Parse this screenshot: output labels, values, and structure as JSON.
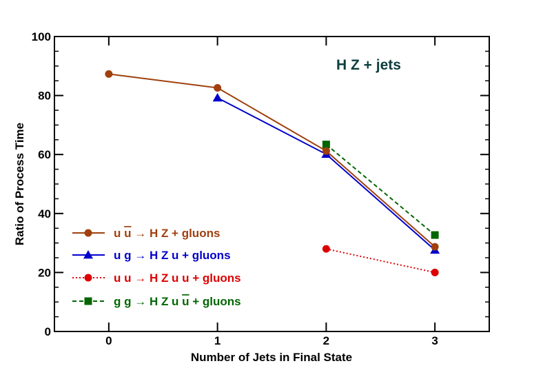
{
  "chart_data": {
    "type": "line",
    "xlabel": "Number of Jets in Final State",
    "ylabel": "Ratio of Process Time",
    "annotation": "H Z + jets",
    "annotation_color": "#0d3d3d",
    "xlim": [
      -0.5,
      3.5
    ],
    "ylim": [
      0,
      100
    ],
    "x_ticks": [
      0,
      1,
      2,
      3
    ],
    "y_ticks": [
      0,
      20,
      40,
      60,
      80,
      100
    ],
    "grid": false,
    "legend_placement": "bottom-left",
    "series": [
      {
        "legend_parts": [
          "u ",
          "u",
          " → H Z + gluons"
        ],
        "overline_index": 1,
        "color": "#a0400f",
        "marker": "circle",
        "line_style": "solid",
        "x": [
          0,
          1,
          2,
          3
        ],
        "y": [
          87.3,
          82.6,
          61.2,
          28.7
        ]
      },
      {
        "legend_parts": [
          "u g → H Z u + gluons"
        ],
        "overline_index": -1,
        "color": "#0000cc",
        "marker": "triangle",
        "line_style": "solid",
        "x": [
          1,
          2,
          3
        ],
        "y": [
          79.2,
          60.1,
          27.6
        ]
      },
      {
        "legend_parts": [
          "u u → H Z u u + gluons"
        ],
        "overline_index": -1,
        "color": "#dd0000",
        "marker": "circle",
        "line_style": "dotted",
        "x": [
          2,
          3
        ],
        "y": [
          28.0,
          20.0
        ]
      },
      {
        "legend_parts": [
          "g g → H Z u ",
          "u",
          " + gluons"
        ],
        "overline_index": 1,
        "color": "#006600",
        "marker": "square",
        "line_style": "dashed",
        "x": [
          2,
          3
        ],
        "y": [
          63.4,
          32.7
        ]
      }
    ]
  }
}
